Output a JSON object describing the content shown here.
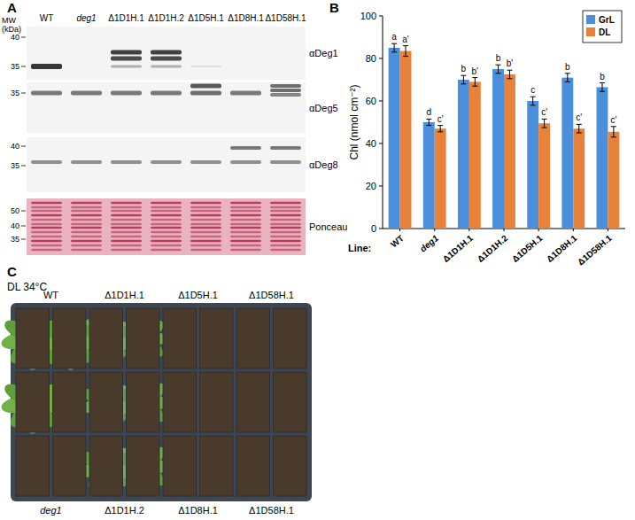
{
  "panels": {
    "labels": [
      "A",
      "B",
      "C"
    ]
  },
  "blot": {
    "mw_title": "MW (kDa)",
    "lanes": [
      "WT",
      "deg1",
      "Δ1D1H.1",
      "Δ1D1H.2",
      "Δ1D5H.1",
      "Δ1D8H.1",
      "Δ1D58H.1"
    ],
    "rows": [
      {
        "antibody": "αDeg1",
        "mw": [
          40,
          35
        ]
      },
      {
        "antibody": "αDeg5",
        "mw": [
          35
        ]
      },
      {
        "antibody": "αDeg8",
        "mw": [
          40,
          35
        ]
      },
      {
        "antibody": "Ponceau",
        "mw": [
          50,
          40,
          35
        ]
      }
    ]
  },
  "chart_data": {
    "type": "bar",
    "x_label": "Line:",
    "y_label": "Chl (nmol cm⁻²)",
    "categories": [
      "WT",
      "deg1",
      "Δ1D1H.1",
      "Δ1D1H.2",
      "Δ1D5H.1",
      "Δ1D8H.1",
      "Δ1D58H.1"
    ],
    "series": [
      {
        "name": "GrL",
        "color": "#4a8fdc",
        "values": [
          85,
          50,
          70,
          75,
          60,
          71,
          66.5
        ],
        "errors": [
          2,
          1.5,
          2,
          2,
          2,
          2,
          2
        ],
        "significance": [
          "a",
          "d",
          "b",
          "b",
          "c",
          "b",
          "b"
        ]
      },
      {
        "name": "DL",
        "color": "#e8823a",
        "values": [
          83.5,
          47,
          69,
          72.5,
          49.5,
          47,
          45.5
        ],
        "errors": [
          2.5,
          1.5,
          2,
          2,
          2,
          2,
          2.5
        ],
        "significance": [
          "a'",
          "c'",
          "b'",
          "b'",
          "c'",
          "c'",
          "c'"
        ]
      }
    ],
    "ylim": [
      0,
      100
    ],
    "yticks": [
      0,
      20,
      40,
      60,
      80,
      100
    ],
    "grid": false,
    "legend": "top-right"
  },
  "photo": {
    "condition": "DL 34°C",
    "top_labels": [
      "WT",
      "Δ1D1H.1",
      "Δ1D5H.1",
      "Δ1D58H.1"
    ],
    "bottom_labels": [
      "deg1",
      "Δ1D1H.2",
      "Δ1D8H.1",
      "Δ1D58H.1"
    ]
  }
}
